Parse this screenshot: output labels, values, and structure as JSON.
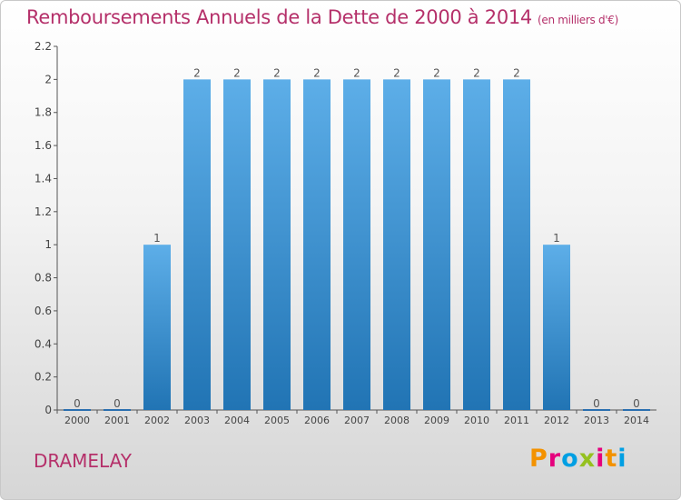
{
  "title": "Remboursements Annuels de la Dette de 2000 à 2014",
  "subtitle": "(en milliers d'€)",
  "place": "DRAMELAY",
  "logo": "Proxiti",
  "logo_colors": [
    "#f39200",
    "#e5007d",
    "#009fe3",
    "#95c11f",
    "#e5007d",
    "#f39200",
    "#009fe3"
  ],
  "colors": {
    "title": "#b5306a",
    "bar_light": "#5daee8",
    "bar_dark": "#2174b4"
  },
  "chart_data": {
    "type": "bar",
    "title": "Remboursements Annuels de la Dette de 2000 à 2014",
    "xlabel": "",
    "ylabel": "",
    "categories": [
      "2000",
      "2001",
      "2002",
      "2003",
      "2004",
      "2005",
      "2006",
      "2007",
      "2008",
      "2009",
      "2010",
      "2011",
      "2012",
      "2013",
      "2014"
    ],
    "values": [
      0,
      0,
      1,
      2,
      2,
      2,
      2,
      2,
      2,
      2,
      2,
      2,
      1,
      0,
      0
    ],
    "data_labels": [
      "0",
      "0",
      "1",
      "2",
      "2",
      "2",
      "2",
      "2",
      "2",
      "2",
      "2",
      "2",
      "1",
      "0",
      "0"
    ],
    "ylim": [
      0,
      2.2
    ],
    "yticks": [
      0,
      0.2,
      0.4,
      0.6,
      0.8,
      1,
      1.2,
      1.4,
      1.6,
      1.8,
      2,
      2.2
    ],
    "ytick_labels": [
      "0",
      "0.2",
      "0.4",
      "0.6",
      "0.8",
      "1",
      "1.2",
      "1.4",
      "1.6",
      "1.8",
      "2",
      "2.2"
    ],
    "grid": false
  }
}
